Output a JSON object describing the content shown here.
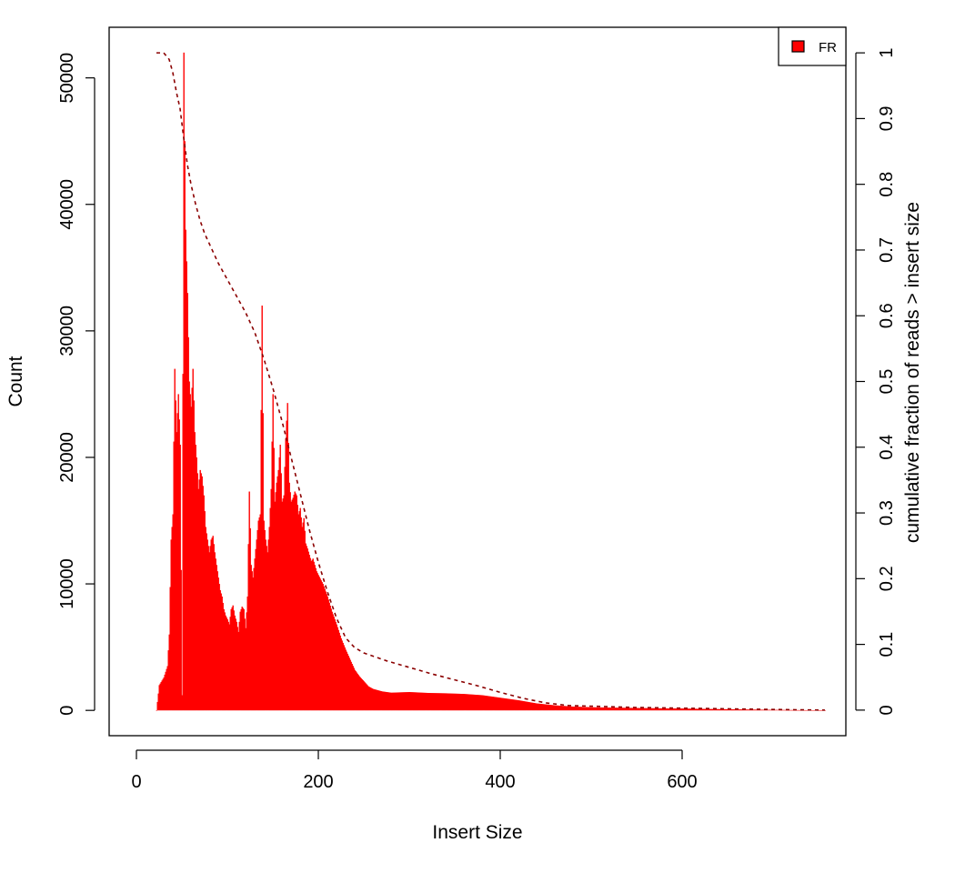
{
  "chart_data": {
    "type": "bar",
    "title": "",
    "xlabel": "Insert Size",
    "ylabel": "Count",
    "y2label": "cumulative fraction of reads > insert size",
    "xlim": [
      -30,
      780
    ],
    "ylim": [
      -2000,
      54000
    ],
    "y2lim": [
      -0.0389,
      1.0389
    ],
    "x_ticks": [
      0,
      200,
      400,
      600
    ],
    "y_ticks": [
      0,
      10000,
      20000,
      30000,
      40000,
      50000
    ],
    "y2_ticks": [
      0,
      0.1,
      0.2,
      0.3,
      0.4,
      0.5,
      0.6,
      0.7,
      0.8,
      0.9,
      1
    ],
    "legend": {
      "position": "top-right",
      "entries": [
        "FR"
      ]
    },
    "grid": false,
    "colors": {
      "bars": "#ff0000",
      "cumulative": "#8b0000"
    },
    "series": [
      {
        "name": "FR",
        "kind": "histogram",
        "points": [
          [
            22,
            0
          ],
          [
            25,
            2000
          ],
          [
            30,
            2600
          ],
          [
            34,
            3500
          ],
          [
            36,
            6000
          ],
          [
            38,
            13500
          ],
          [
            40,
            15500
          ],
          [
            42,
            27000
          ],
          [
            44,
            22000
          ],
          [
            46,
            25000
          ],
          [
            48,
            21000
          ],
          [
            50,
            1200
          ],
          [
            52,
            52000
          ],
          [
            54,
            38000
          ],
          [
            56,
            33000
          ],
          [
            58,
            26000
          ],
          [
            60,
            24000
          ],
          [
            62,
            27000
          ],
          [
            64,
            22000
          ],
          [
            66,
            20000
          ],
          [
            68,
            17500
          ],
          [
            70,
            19000
          ],
          [
            72,
            18500
          ],
          [
            74,
            17000
          ],
          [
            76,
            14500
          ],
          [
            78,
            13500
          ],
          [
            80,
            12500
          ],
          [
            82,
            13500
          ],
          [
            84,
            13800
          ],
          [
            86,
            12500
          ],
          [
            88,
            11500
          ],
          [
            90,
            10500
          ],
          [
            92,
            9500
          ],
          [
            94,
            9000
          ],
          [
            96,
            8000
          ],
          [
            98,
            7500
          ],
          [
            100,
            7200
          ],
          [
            102,
            6800
          ],
          [
            104,
            8000
          ],
          [
            106,
            8300
          ],
          [
            108,
            7500
          ],
          [
            110,
            7000
          ],
          [
            112,
            6200
          ],
          [
            114,
            7800
          ],
          [
            116,
            8200
          ],
          [
            118,
            8000
          ],
          [
            120,
            6500
          ],
          [
            122,
            9000
          ],
          [
            124,
            17300
          ],
          [
            126,
            11500
          ],
          [
            128,
            10500
          ],
          [
            130,
            12000
          ],
          [
            132,
            13500
          ],
          [
            134,
            15000
          ],
          [
            136,
            15500
          ],
          [
            138,
            32000
          ],
          [
            140,
            15000
          ],
          [
            142,
            13500
          ],
          [
            144,
            12500
          ],
          [
            146,
            14500
          ],
          [
            148,
            17500
          ],
          [
            150,
            25000
          ],
          [
            152,
            16500
          ],
          [
            154,
            18000
          ],
          [
            156,
            19000
          ],
          [
            158,
            21000
          ],
          [
            160,
            16500
          ],
          [
            162,
            17000
          ],
          [
            164,
            21500
          ],
          [
            166,
            24300
          ],
          [
            168,
            18000
          ],
          [
            170,
            16500
          ],
          [
            172,
            16800
          ],
          [
            174,
            17300
          ],
          [
            176,
            17000
          ],
          [
            178,
            15500
          ],
          [
            180,
            16000
          ],
          [
            182,
            14500
          ],
          [
            184,
            15200
          ],
          [
            186,
            13200
          ],
          [
            188,
            12800
          ],
          [
            190,
            12300
          ],
          [
            192,
            11800
          ],
          [
            194,
            12000
          ],
          [
            196,
            11500
          ],
          [
            198,
            11000
          ],
          [
            200,
            10700
          ],
          [
            205,
            10000
          ],
          [
            210,
            9000
          ],
          [
            215,
            7800
          ],
          [
            220,
            6800
          ],
          [
            225,
            5700
          ],
          [
            230,
            4800
          ],
          [
            235,
            4000
          ],
          [
            240,
            3200
          ],
          [
            245,
            2700
          ],
          [
            250,
            2300
          ],
          [
            255,
            1900
          ],
          [
            260,
            1700
          ],
          [
            265,
            1600
          ],
          [
            270,
            1500
          ],
          [
            280,
            1400
          ],
          [
            300,
            1450
          ],
          [
            320,
            1380
          ],
          [
            340,
            1350
          ],
          [
            360,
            1300
          ],
          [
            380,
            1200
          ],
          [
            400,
            1000
          ],
          [
            420,
            800
          ],
          [
            440,
            550
          ],
          [
            460,
            400
          ],
          [
            480,
            300
          ],
          [
            500,
            250
          ],
          [
            520,
            220
          ],
          [
            540,
            200
          ],
          [
            560,
            180
          ],
          [
            580,
            160
          ],
          [
            600,
            150
          ],
          [
            620,
            120
          ],
          [
            640,
            100
          ],
          [
            660,
            80
          ],
          [
            680,
            60
          ],
          [
            700,
            40
          ],
          [
            720,
            25
          ],
          [
            740,
            15
          ],
          [
            757,
            10
          ]
        ]
      },
      {
        "name": "cumulative",
        "kind": "line",
        "dashed": true,
        "points": [
          [
            22,
            1
          ],
          [
            30,
            1
          ],
          [
            36,
            0.99
          ],
          [
            40,
            0.97
          ],
          [
            44,
            0.94
          ],
          [
            48,
            0.915
          ],
          [
            52,
            0.87
          ],
          [
            56,
            0.83
          ],
          [
            60,
            0.8
          ],
          [
            65,
            0.77
          ],
          [
            70,
            0.745
          ],
          [
            75,
            0.725
          ],
          [
            80,
            0.71
          ],
          [
            90,
            0.68
          ],
          [
            100,
            0.655
          ],
          [
            110,
            0.63
          ],
          [
            120,
            0.605
          ],
          [
            130,
            0.575
          ],
          [
            140,
            0.535
          ],
          [
            150,
            0.49
          ],
          [
            160,
            0.44
          ],
          [
            170,
            0.385
          ],
          [
            180,
            0.33
          ],
          [
            190,
            0.275
          ],
          [
            200,
            0.225
          ],
          [
            210,
            0.18
          ],
          [
            220,
            0.14
          ],
          [
            230,
            0.11
          ],
          [
            240,
            0.095
          ],
          [
            250,
            0.087
          ],
          [
            275,
            0.075
          ],
          [
            300,
            0.065
          ],
          [
            325,
            0.055
          ],
          [
            350,
            0.046
          ],
          [
            375,
            0.037
          ],
          [
            400,
            0.027
          ],
          [
            425,
            0.018
          ],
          [
            450,
            0.011
          ],
          [
            475,
            0.007
          ],
          [
            500,
            0.006
          ],
          [
            550,
            0.004
          ],
          [
            600,
            0.003
          ],
          [
            650,
            0.002
          ],
          [
            700,
            0.001
          ],
          [
            757,
            0
          ]
        ]
      }
    ]
  }
}
